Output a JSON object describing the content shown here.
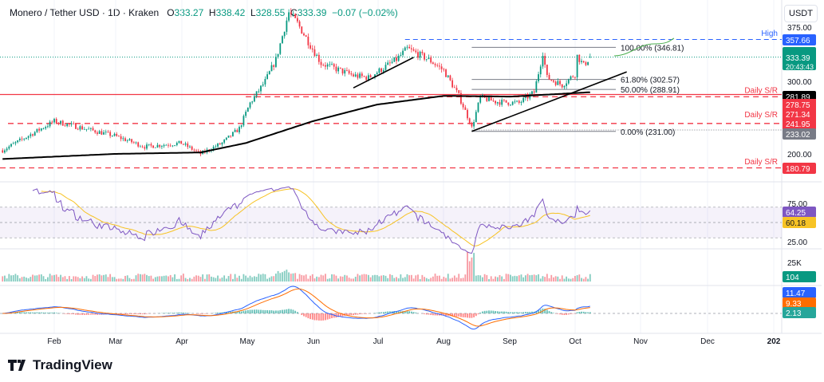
{
  "legend": {
    "symbol": "Monero / Tether USD · 1D · Kraken",
    "open_label": "O",
    "open": "333.27",
    "high_label": "H",
    "high": "338.42",
    "low_label": "L",
    "low": "328.55",
    "close_label": "C",
    "close": "333.39",
    "change": "−0.07 (−0.02%)"
  },
  "price_scale": {
    "unit": "USDT",
    "ticks": [
      "375.00",
      "300.00",
      "200.00"
    ]
  },
  "badges": {
    "high": "357.66",
    "last": "333.39",
    "countdown": "20:43:43",
    "ema": "281.89",
    "sr1": "278.75",
    "sr2": "271.34",
    "sr3": "241.95",
    "low": "233.02",
    "sr4": "180.79"
  },
  "annotations": {
    "high_label": "High",
    "daily_sr": "Daily S/R",
    "fib": [
      {
        "label": "100.00% (346.81)",
        "price": 346.81
      },
      {
        "label": "61.80% (302.57)",
        "price": 302.57
      },
      {
        "label": "50.00% (288.91)",
        "price": 288.91
      },
      {
        "label": "0.00% (231.00)",
        "price": 231.0
      }
    ]
  },
  "rsi": {
    "ticks": [
      "75.00",
      "25.00"
    ],
    "value": "64.25",
    "ma": "60.18"
  },
  "volume": {
    "tick": "25K",
    "value": "104"
  },
  "macd": {
    "macd": "11.47",
    "signal": "9.33",
    "hist": "2.13"
  },
  "x_axis": [
    "Feb",
    "Mar",
    "Apr",
    "May",
    "Jun",
    "Jul",
    "Aug",
    "Sep",
    "Oct",
    "Nov",
    "Dec",
    "202"
  ],
  "brand": "TradingView",
  "colors": {
    "up": "#089981",
    "down": "#f23645",
    "ema": "#000000",
    "rsi": "#7e57c2",
    "rsi_ma": "#f7c325",
    "macd": "#2962ff",
    "signal": "#ff6d00",
    "high_line": "#2962ff"
  },
  "chart_data": {
    "type": "candlestick",
    "title": "Monero / Tether USD · 1D · Kraken",
    "ylim": [
      170,
      410
    ],
    "close_path": [
      [
        "01-08",
        205
      ],
      [
        "01-20",
        225
      ],
      [
        "02-01",
        245
      ],
      [
        "02-15",
        235
      ],
      [
        "03-01",
        225
      ],
      [
        "03-15",
        210
      ],
      [
        "04-01",
        215
      ],
      [
        "04-10",
        200
      ],
      [
        "04-20",
        215
      ],
      [
        "04-28",
        235
      ],
      [
        "05-03",
        270
      ],
      [
        "05-10",
        300
      ],
      [
        "05-15",
        330
      ],
      [
        "05-21",
        395
      ],
      [
        "05-25",
        380
      ],
      [
        "06-01",
        345
      ],
      [
        "06-05",
        325
      ],
      [
        "06-20",
        308
      ],
      [
        "06-27",
        305
      ],
      [
        "07-10",
        330
      ],
      [
        "07-15",
        345
      ],
      [
        "07-25",
        330
      ],
      [
        "08-01",
        315
      ],
      [
        "08-08",
        280
      ],
      [
        "08-13",
        245
      ],
      [
        "08-14",
        236
      ],
      [
        "08-18",
        278
      ],
      [
        "08-25",
        272
      ],
      [
        "09-05",
        270
      ],
      [
        "09-12",
        285
      ],
      [
        "09-15",
        325
      ],
      [
        "09-16",
        340
      ],
      [
        "09-18",
        305
      ],
      [
        "09-25",
        295
      ],
      [
        "10-01",
        310
      ],
      [
        "10-02",
        335
      ],
      [
        "10-05",
        322
      ],
      [
        "10-08",
        333.39
      ]
    ],
    "ema200": [
      [
        "01-08",
        193
      ],
      [
        "03-01",
        200
      ],
      [
        "04-10",
        202
      ],
      [
        "05-01",
        215
      ],
      [
        "06-01",
        245
      ],
      [
        "07-01",
        268
      ],
      [
        "08-01",
        280
      ],
      [
        "09-01",
        279
      ],
      [
        "10-08",
        285
      ]
    ],
    "trendlines": [
      [
        [
          "06-20",
          291
        ],
        [
          "07-18",
          333
        ]
      ],
      [
        [
          "08-14",
          231
        ],
        [
          "10-25",
          313
        ]
      ]
    ],
    "horizontal_levels": {
      "ema_level": 281.89,
      "sr": [
        278.75,
        241.95,
        180.79
      ],
      "high": 357.66,
      "low": 233.02,
      "last": 333.39
    }
  }
}
